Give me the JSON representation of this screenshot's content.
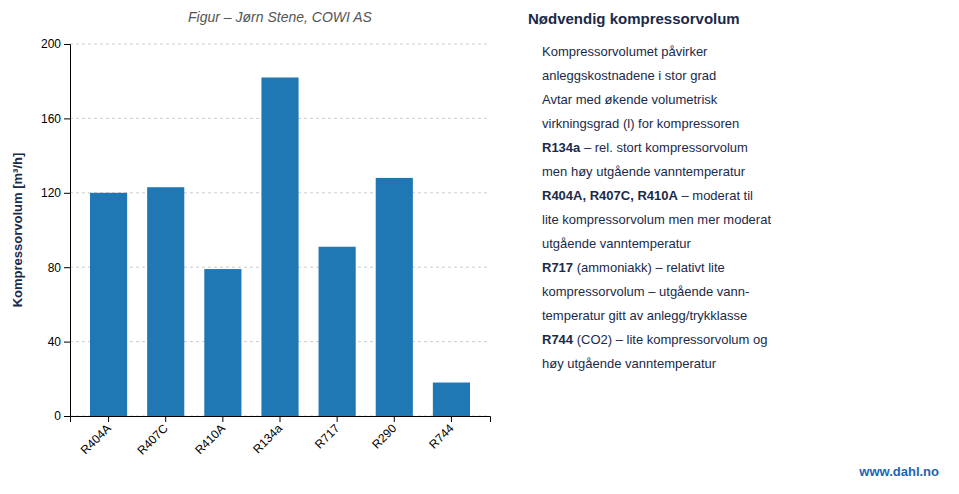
{
  "chart_data": {
    "type": "bar",
    "title": "Figur – Jørn Stene, COWI AS",
    "ylabel": "Kompressorvolum [m³/h]",
    "categories": [
      "R404A",
      "R407C",
      "R410A",
      "R134a",
      "R717",
      "R290",
      "R744"
    ],
    "values": [
      120,
      123,
      79,
      182,
      91,
      128,
      18
    ],
    "ylim": [
      0,
      200
    ],
    "yticks": [
      0,
      40,
      80,
      120,
      160,
      200
    ],
    "grid": true,
    "annotations": [
      [
        "Nødvendig kompressorvolum"
      ],
      [
        "Kompressorvolumet påvirker"
      ],
      [
        "anleggskostnadene i stor grad"
      ],
      [
        "Avtar med økende volumetrisk"
      ],
      [
        "virkningsgrad (l) for kompressoren"
      ],
      [
        "R134a",
        " – rel. stort kompressorvolum"
      ],
      [
        "men høy utgående vanntemperatur"
      ],
      [
        "R404A, R407C, R410A",
        " – moderat til"
      ],
      [
        "lite kompressorvolum men mer moderat"
      ],
      [
        "utgående vanntemperatur"
      ],
      [
        "R717",
        " (ammoniakk) – relativt lite"
      ],
      [
        "kompressorvolum – utgående vann-"
      ],
      [
        "temperatur gitt av anlegg/trykklasse"
      ],
      [
        "R744",
        " (CO2) – lite kompressorvolum og"
      ],
      [
        "høy utgående vanntemperatur"
      ],
      [
        "www.dahl.no"
      ]
    ]
  }
}
